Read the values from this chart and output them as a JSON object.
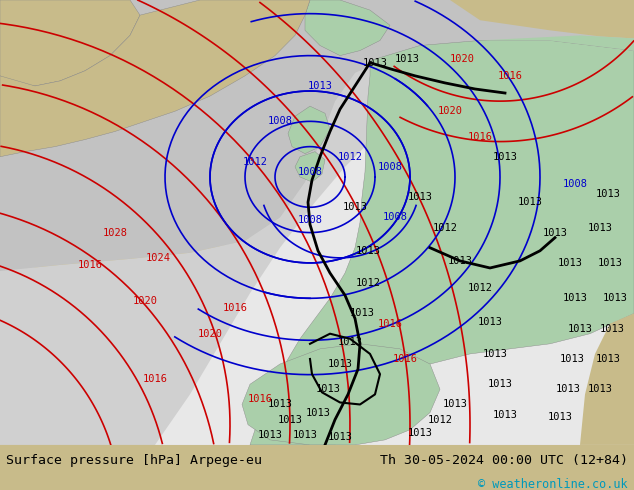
{
  "title_left": "Surface pressure [hPa] Arpege-eu",
  "title_right": "Th 30-05-2024 00:00 UTC (12+84)",
  "copyright": "© weatheronline.co.uk",
  "bg_tan": "#c8bb8a",
  "bg_grey": "#c0c0c0",
  "bg_white": "#e8e8e8",
  "bg_green": "#aacfaa",
  "bg_dark_grey": "#a0a0a0",
  "bottom_bar_color": "#ffffff",
  "text_color": "#000000",
  "cyan_text_color": "#0099bb",
  "blue_iso": "#0000cc",
  "red_iso": "#cc0000",
  "black_line": "#000000",
  "fig_width": 6.34,
  "fig_height": 4.9,
  "dpi": 100,
  "bottom_bar_height": 0.092
}
